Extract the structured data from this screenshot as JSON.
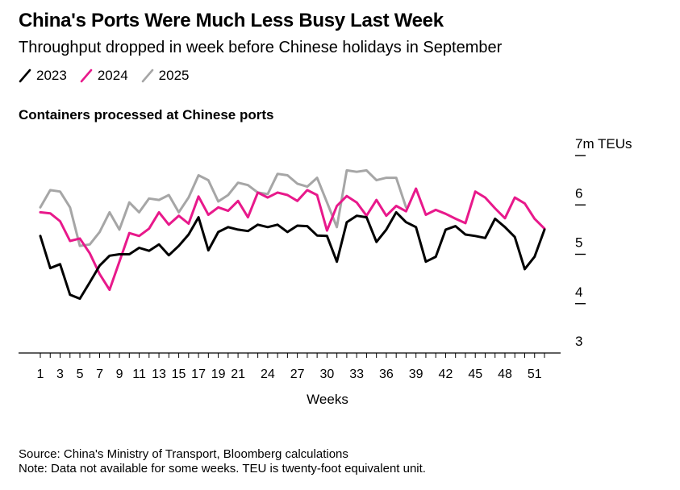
{
  "title": "China's Ports Were Much Less Busy Last Week",
  "subtitle": "Throughput dropped in week before Chinese holidays in September",
  "panel_title": "Containers processed at Chinese ports",
  "source": "Source: China's Ministry of Transport, Bloomberg calculations",
  "note": "Note: Data not available for some weeks. TEU is twenty-foot equivalent unit.",
  "chart_data": {
    "type": "line",
    "title": "Containers processed at Chinese ports",
    "xlabel": "Weeks",
    "ylabel": "7m TEUs",
    "xlim": [
      1,
      53
    ],
    "ylim": [
      3,
      7
    ],
    "x_ticks": [
      1,
      3,
      5,
      7,
      9,
      11,
      13,
      15,
      17,
      19,
      21,
      24,
      27,
      30,
      33,
      36,
      39,
      42,
      45,
      48,
      51
    ],
    "y_ticks": [
      3,
      4,
      5,
      6,
      7
    ],
    "y_tick_labels": [
      "3",
      "4",
      "5",
      "6",
      "7m TEUs"
    ],
    "legend_position": "top-left",
    "grid": false,
    "series": [
      {
        "name": "2023",
        "color": "#000000",
        "x": [
          1,
          2,
          3,
          4,
          5,
          6,
          7,
          8,
          9,
          10,
          11,
          12,
          13,
          14,
          15,
          16,
          17,
          18,
          19,
          20,
          21,
          22,
          23,
          24,
          25,
          26,
          27,
          28,
          29,
          30,
          31,
          32,
          33,
          34,
          35,
          36,
          37,
          38,
          39,
          40,
          41,
          42,
          43,
          44,
          45,
          46,
          47,
          48,
          49,
          50,
          51,
          52
        ],
        "values": [
          5.37,
          4.72,
          4.8,
          4.18,
          4.1,
          4.43,
          4.77,
          4.97,
          5.0,
          5.0,
          5.13,
          5.07,
          5.2,
          4.98,
          5.17,
          5.4,
          5.75,
          5.08,
          5.45,
          5.55,
          5.5,
          5.47,
          5.6,
          5.55,
          5.6,
          5.45,
          5.58,
          5.57,
          5.38,
          5.37,
          4.85,
          5.65,
          5.78,
          5.75,
          5.25,
          5.5,
          5.85,
          5.65,
          5.55,
          4.85,
          4.95,
          5.5,
          5.57,
          5.4,
          5.37,
          5.33,
          5.72,
          5.55,
          5.35,
          4.7,
          4.95,
          5.5
        ]
      },
      {
        "name": "2024",
        "color": "#e8198b",
        "x": [
          1,
          2,
          3,
          4,
          5,
          6,
          7,
          8,
          9,
          10,
          11,
          12,
          13,
          14,
          15,
          16,
          17,
          18,
          19,
          20,
          21,
          22,
          23,
          24,
          25,
          26,
          27,
          28,
          29,
          30,
          31,
          32,
          33,
          34,
          35,
          36,
          37,
          38,
          39,
          40,
          41,
          42,
          43,
          44,
          45,
          46,
          47,
          48,
          49,
          50,
          51,
          52
        ],
        "values": [
          5.85,
          5.83,
          5.67,
          5.27,
          5.32,
          5.02,
          4.6,
          4.28,
          4.85,
          5.43,
          5.37,
          5.52,
          5.85,
          5.6,
          5.78,
          5.62,
          6.17,
          5.8,
          5.95,
          5.88,
          6.08,
          5.75,
          6.25,
          6.15,
          6.25,
          6.2,
          6.08,
          6.3,
          6.2,
          5.48,
          5.98,
          6.18,
          6.05,
          5.78,
          6.1,
          5.78,
          5.98,
          5.87,
          6.33,
          5.8,
          5.9,
          5.82,
          5.72,
          5.63,
          6.27,
          6.15,
          5.93,
          5.73,
          6.15,
          6.03,
          5.72,
          5.52
        ]
      },
      {
        "name": "2025",
        "color": "#a6a6a6",
        "x": [
          1,
          2,
          3,
          4,
          5,
          6,
          7,
          8,
          9,
          10,
          11,
          12,
          13,
          14,
          15,
          16,
          17,
          18,
          19,
          20,
          21,
          22,
          23,
          24,
          25,
          26,
          27,
          28,
          29,
          30,
          31,
          32,
          33,
          34,
          35,
          36,
          37,
          38
        ],
        "values": [
          5.95,
          6.3,
          6.27,
          5.95,
          5.17,
          5.2,
          5.45,
          5.85,
          5.5,
          6.05,
          5.85,
          6.13,
          6.1,
          6.2,
          5.85,
          6.15,
          6.6,
          6.5,
          6.07,
          6.2,
          6.45,
          6.4,
          6.25,
          6.22,
          6.63,
          6.6,
          6.43,
          6.37,
          6.55,
          6.05,
          5.55,
          6.7,
          6.67,
          6.7,
          6.5,
          6.55,
          6.55,
          5.95
        ]
      }
    ]
  }
}
